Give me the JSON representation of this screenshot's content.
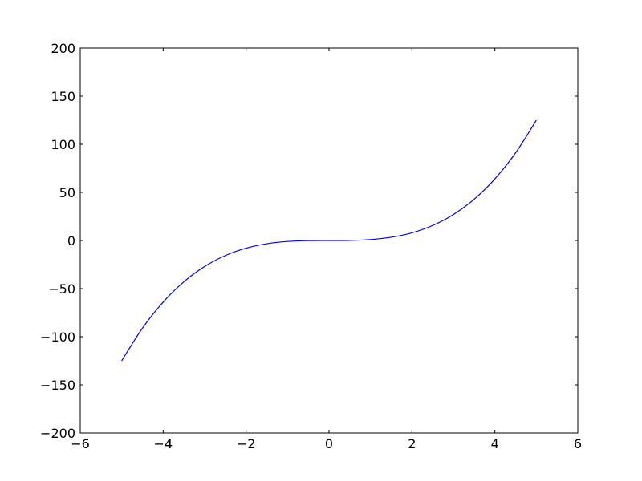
{
  "chart_data": {
    "type": "line",
    "title": "",
    "xlabel": "",
    "ylabel": "",
    "xlim": [
      -6,
      6
    ],
    "ylim": [
      -200,
      200
    ],
    "grid": false,
    "xticks": [
      -6,
      -4,
      -2,
      0,
      2,
      4,
      6
    ],
    "yticks": [
      -200,
      -150,
      -100,
      -50,
      0,
      50,
      100,
      150,
      200
    ],
    "xtick_labels": [
      "−6",
      "−4",
      "−2",
      "0",
      "2",
      "4",
      "6"
    ],
    "ytick_labels": [
      "−200",
      "−150",
      "−100",
      "−50",
      "0",
      "50",
      "100",
      "150",
      "200"
    ],
    "series": [
      {
        "color": "#0000ff",
        "x": [
          -5,
          -4.5,
          -4,
          -3.5,
          -3,
          -2.5,
          -2,
          -1.5,
          -1,
          -0.5,
          0,
          0.5,
          1,
          1.5,
          2,
          2.5,
          3,
          3.5,
          4,
          4.5,
          5
        ],
        "y": [
          -125,
          -91.125,
          -64,
          -42.875,
          -27,
          -15.625,
          -8,
          -3.375,
          -1,
          -0.125,
          0,
          0.125,
          1,
          3.375,
          8,
          15.625,
          27,
          42.875,
          64,
          91.125,
          125
        ]
      }
    ]
  }
}
